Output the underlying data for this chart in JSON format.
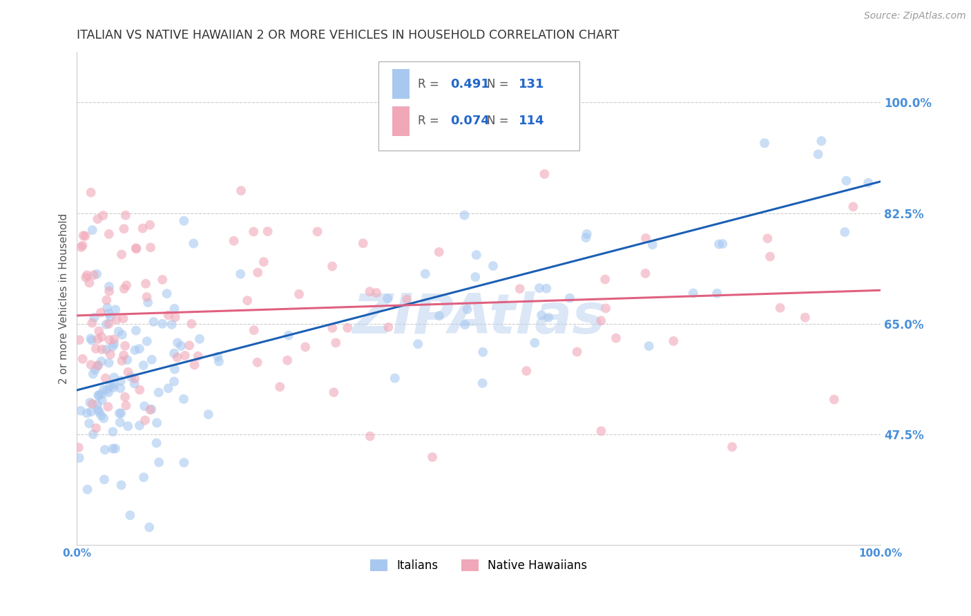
{
  "title": "ITALIAN VS NATIVE HAWAIIAN 2 OR MORE VEHICLES IN HOUSEHOLD CORRELATION CHART",
  "source": "Source: ZipAtlas.com",
  "ylabel": "2 or more Vehicles in Household",
  "xlabel": "",
  "xlim": [
    0.0,
    1.0
  ],
  "ylim": [
    0.3,
    1.08
  ],
  "yticks": [
    0.475,
    0.65,
    0.825,
    1.0
  ],
  "ytick_labels": [
    "47.5%",
    "65.0%",
    "82.5%",
    "100.0%"
  ],
  "xticks": [
    0.0,
    0.2,
    0.4,
    0.6,
    0.8,
    1.0
  ],
  "xtick_labels": [
    "0.0%",
    "",
    "",
    "",
    "",
    "100.0%"
  ],
  "italian_color": "#a8c8f0",
  "hawaiian_color": "#f0a8b8",
  "italian_line_color": "#1a5fb4",
  "hawaiian_line_color": "#e06080",
  "italian_R": 0.491,
  "italian_N": 131,
  "hawaiian_R": 0.074,
  "hawaiian_N": 114,
  "legend_italian_label": "Italians",
  "legend_hawaiian_label": "Native Hawaiians",
  "background_color": "#ffffff",
  "grid_color": "#cccccc",
  "title_color": "#333333",
  "watermark_text": "ZIPAtlas",
  "watermark_color": "#b8d0ee",
  "marker_size": 100,
  "marker_alpha": 0.6,
  "it_line_x0": 0.0,
  "it_line_y0": 0.545,
  "it_line_x1": 1.0,
  "it_line_y1": 0.875,
  "haw_line_x0": 0.0,
  "haw_line_y0": 0.663,
  "haw_line_x1": 1.0,
  "haw_line_y1": 0.703
}
